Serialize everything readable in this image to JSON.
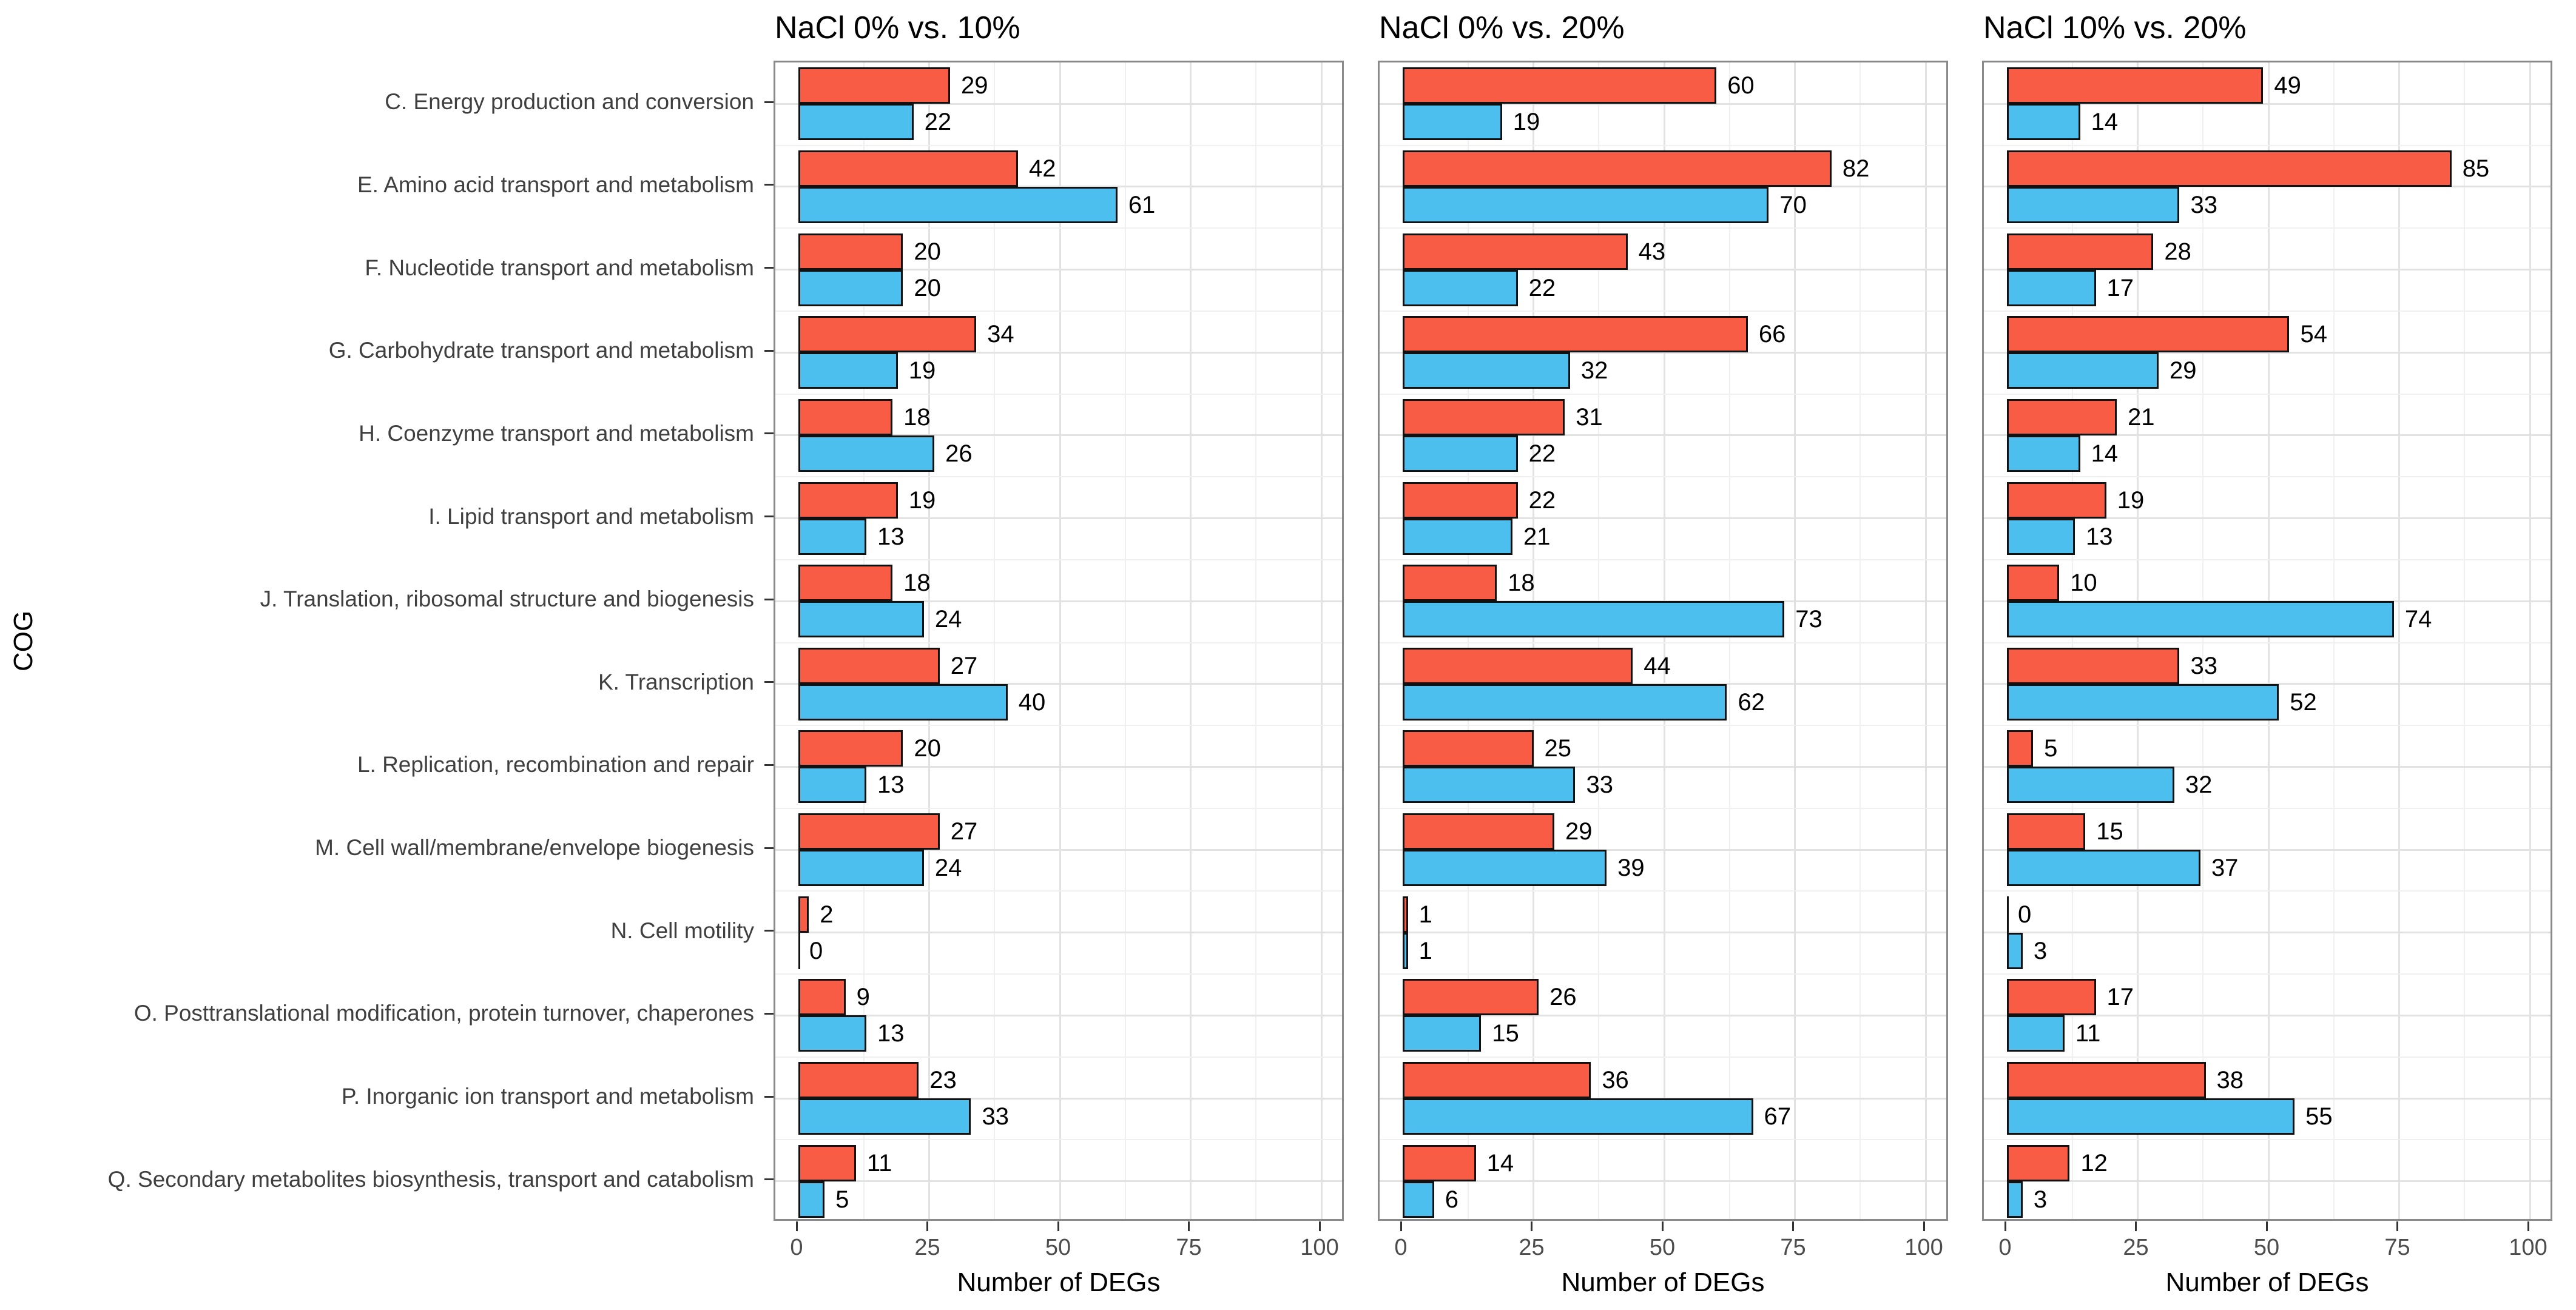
{
  "figure": {
    "x_axis_title": "Number of DEGs",
    "y_axis_title": "COG",
    "colors": {
      "red_bar": "#F95C44",
      "blue_bar": "#4DBFEE",
      "bar_outline": "#111111",
      "panel_border": "#8a8a8a",
      "grid_major": "#e2e2e2",
      "grid_minor": "#f0f0f0",
      "category_label": "#3f3f3f",
      "tick_label": "#4d4d4d"
    }
  },
  "chart_data": {
    "type": "bar",
    "orientation": "horizontal",
    "xlabel": "Number of DEGs",
    "ylabel": "COG",
    "xlim": [
      0,
      100
    ],
    "x_ticks": [
      0,
      25,
      50,
      75,
      100
    ],
    "grid": "major and minor vertical + horizontal light gray lines",
    "legend": "none",
    "categories": [
      "C. Energy production and conversion",
      "E. Amino acid transport and metabolism",
      "F. Nucleotide transport and metabolism",
      "G. Carbohydrate transport and metabolism",
      "H. Coenzyme transport and metabolism",
      "I. Lipid transport and metabolism",
      "J. Translation, ribosomal structure and biogenesis",
      "K. Transcription",
      "L. Replication, recombination and repair",
      "M. Cell wall/membrane/envelope biogenesis",
      "N. Cell motility",
      "O. Posttranslational modification, protein turnover, chaperones",
      "P. Inorganic ion transport and metabolism",
      "Q. Secondary metabolites biosynthesis, transport and catabolism"
    ],
    "panels": [
      {
        "title": "NaCl 0% vs. 10%",
        "series": [
          {
            "name": "red",
            "color": "#F95C44",
            "values": [
              29,
              42,
              20,
              34,
              18,
              19,
              18,
              27,
              20,
              27,
              2,
              9,
              23,
              11
            ]
          },
          {
            "name": "blue",
            "color": "#4DBFEE",
            "values": [
              22,
              61,
              20,
              19,
              26,
              13,
              24,
              40,
              13,
              24,
              0,
              13,
              33,
              5
            ]
          }
        ]
      },
      {
        "title": "NaCl 0% vs. 20%",
        "series": [
          {
            "name": "red",
            "color": "#F95C44",
            "values": [
              60,
              82,
              43,
              66,
              31,
              22,
              18,
              44,
              25,
              29,
              1,
              26,
              36,
              14
            ]
          },
          {
            "name": "blue",
            "color": "#4DBFEE",
            "values": [
              19,
              70,
              22,
              32,
              22,
              21,
              73,
              62,
              33,
              39,
              1,
              15,
              67,
              6
            ]
          }
        ]
      },
      {
        "title": "NaCl 10% vs. 20%",
        "series": [
          {
            "name": "red",
            "color": "#F95C44",
            "values": [
              49,
              85,
              28,
              54,
              21,
              19,
              10,
              33,
              5,
              15,
              0,
              17,
              38,
              12
            ]
          },
          {
            "name": "blue",
            "color": "#4DBFEE",
            "values": [
              14,
              33,
              17,
              29,
              14,
              13,
              74,
              52,
              32,
              37,
              3,
              11,
              55,
              3
            ]
          }
        ]
      }
    ]
  }
}
